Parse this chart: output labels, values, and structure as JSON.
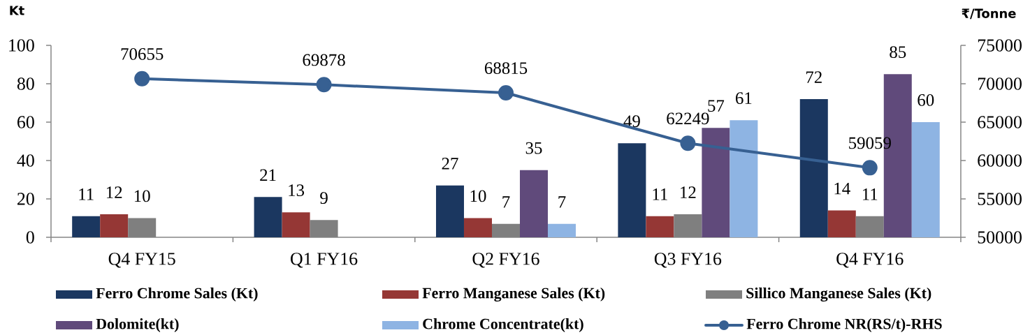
{
  "chart_data": {
    "type": "bar",
    "categories": [
      "Q4 FY15",
      "Q1 FY16",
      "Q2 FY16",
      "Q3 FY16",
      "Q4 FY16"
    ],
    "ylabel": "Kt",
    "y2label": "₹/Tonne",
    "series": [
      {
        "name": "Ferro Chrome Sales (Kt)",
        "color": "#1B3760",
        "values": [
          11,
          21,
          27,
          49,
          72
        ]
      },
      {
        "name": "Ferro Manganese Sales (Kt)",
        "color": "#953735",
        "values": [
          12,
          13,
          10,
          11,
          14
        ]
      },
      {
        "name": "Sillico Manganese Sales (Kt)",
        "color": "#7F7F7F",
        "values": [
          10,
          9,
          7,
          12,
          11
        ]
      },
      {
        "name": "Dolomite(kt)",
        "color": "#604A7B",
        "values": [
          null,
          null,
          35,
          57,
          85
        ]
      },
      {
        "name": "Chrome Concentrate(kt)",
        "color": "#8EB4E3",
        "values": [
          null,
          null,
          7,
          61,
          60
        ]
      },
      {
        "name": "Ferro Chrome NR(RS/t)-RHS",
        "type": "line",
        "axis": "y2",
        "marker": "circle",
        "color": "#376092",
        "values": [
          70655,
          69878,
          68815,
          62249,
          59059
        ]
      }
    ],
    "ylim": [
      0,
      100
    ],
    "yticks": [
      0,
      20,
      40,
      60,
      80,
      100
    ],
    "y2lim": [
      50000,
      75000
    ],
    "y2ticks": [
      50000,
      55000,
      60000,
      65000,
      70000,
      75000
    ],
    "data_labels": true,
    "legend": "bottom"
  }
}
